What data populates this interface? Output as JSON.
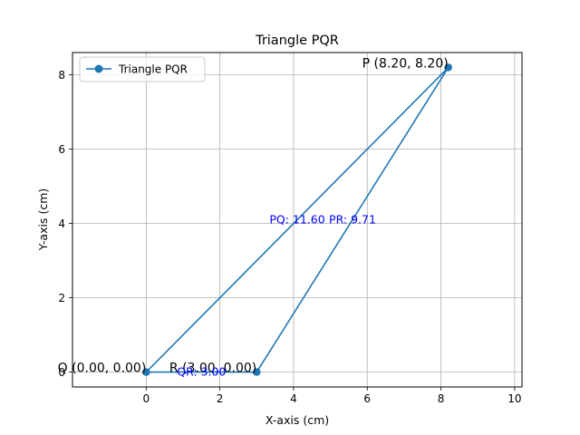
{
  "chart_data": {
    "type": "line",
    "title": "Triangle PQR",
    "xlabel": "X-axis (cm)",
    "ylabel": "Y-axis (cm)",
    "xlim": [
      -2.0,
      10.2
    ],
    "ylim": [
      -0.4,
      8.6
    ],
    "xticks": [
      0,
      2,
      4,
      6,
      8,
      10
    ],
    "yticks": [
      0,
      2,
      4,
      6,
      8
    ],
    "grid": true,
    "legend": {
      "location": "top-left",
      "entries": [
        "Triangle PQR"
      ]
    },
    "series": [
      {
        "name": "Triangle PQR",
        "color": "#1f77b4",
        "x": [
          8.2,
          0.0,
          3.0,
          8.2
        ],
        "y": [
          8.2,
          0.0,
          0.0,
          8.2
        ]
      }
    ],
    "point_labels": [
      {
        "text": "P (8.20, 8.20)",
        "x": 8.2,
        "y": 8.2,
        "color": "#000000"
      },
      {
        "text": "Q (0.00, 0.00)",
        "x": 0.0,
        "y": 0.0,
        "color": "#000000"
      },
      {
        "text": "R (3.00, 0.00)",
        "x": 3.0,
        "y": 0.0,
        "color": "#000000"
      }
    ],
    "side_labels": [
      {
        "text": "PQ: 11.60",
        "x": 4.1,
        "y": 4.1,
        "color": "#0000ff"
      },
      {
        "text": "PR: 9.71",
        "x": 5.6,
        "y": 4.1,
        "color": "#0000ff"
      },
      {
        "text": "QR: 3.00",
        "x": 1.5,
        "y": 0.0,
        "color": "#0000ff"
      }
    ]
  }
}
